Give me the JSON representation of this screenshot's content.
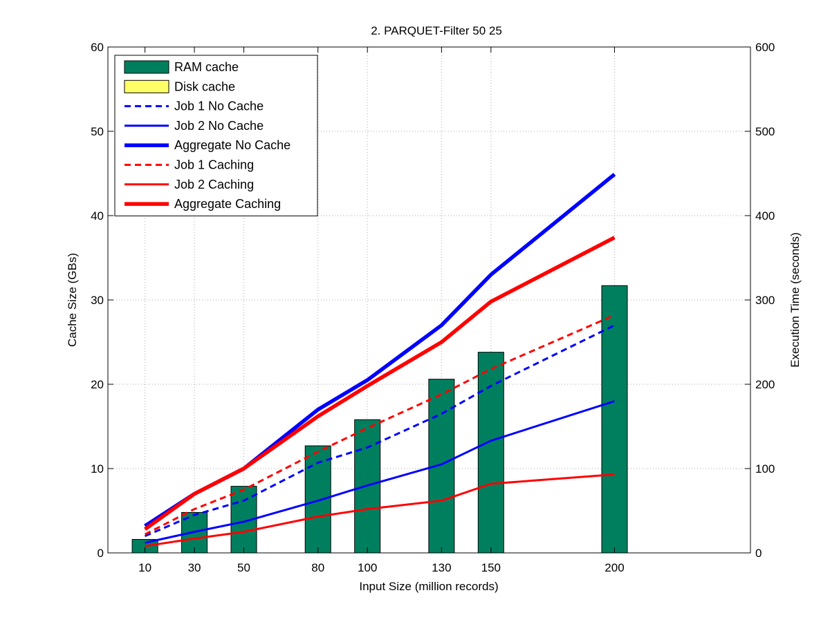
{
  "chart_data": {
    "type": "bar+line",
    "title": "2. PARQUET-Filter 50 25",
    "xlabel": "Input Size (million records)",
    "ylabel_left": "Cache Size (GBs)",
    "ylabel_right": "Execution Time (seconds)",
    "x": [
      10,
      30,
      50,
      80,
      100,
      130,
      150,
      200
    ],
    "x_tick_labels": [
      "10",
      "30",
      "50",
      "80",
      "100",
      "130",
      "150",
      "200"
    ],
    "xlim": [
      -5,
      255
    ],
    "ylim_left": [
      0,
      60
    ],
    "ylim_right": [
      0,
      600
    ],
    "y_ticks_left": [
      0,
      10,
      20,
      30,
      40,
      50,
      60
    ],
    "y_ticks_right": [
      0,
      100,
      200,
      300,
      400,
      500,
      600
    ],
    "grid": true,
    "legend_position": "top-left",
    "bars": [
      {
        "name": "RAM cache",
        "axis": "left",
        "color": "#007f5f",
        "values": [
          1.6,
          4.8,
          7.9,
          12.7,
          15.8,
          20.6,
          23.8,
          31.7
        ]
      },
      {
        "name": "Disk cache",
        "axis": "left",
        "color": "#ffff66",
        "values": [
          0,
          0,
          0,
          0,
          0,
          0,
          0,
          0
        ]
      }
    ],
    "series": [
      {
        "name": "Job 1 No Cache",
        "axis": "right",
        "color": "#0000ff",
        "style": "dashed",
        "width": 3,
        "values": [
          20,
          45,
          62,
          107,
          125,
          165,
          198,
          270
        ]
      },
      {
        "name": "Job 2 No Cache",
        "axis": "right",
        "color": "#0000ff",
        "style": "solid",
        "width": 3,
        "values": [
          12,
          25,
          37,
          62,
          80,
          105,
          133,
          180
        ]
      },
      {
        "name": "Aggregate No Cache",
        "axis": "right",
        "color": "#0000ff",
        "style": "solid",
        "width": 5.5,
        "values": [
          32,
          70,
          100,
          170,
          205,
          270,
          330,
          449
        ]
      },
      {
        "name": "Job 1 Caching",
        "axis": "right",
        "color": "#ff0000",
        "style": "dashed",
        "width": 3,
        "values": [
          22,
          52,
          75,
          120,
          148,
          188,
          218,
          282
        ]
      },
      {
        "name": "Job 2 Caching",
        "axis": "right",
        "color": "#ff0000",
        "style": "solid",
        "width": 3,
        "values": [
          8,
          17,
          25,
          43,
          52,
          62,
          82,
          93
        ]
      },
      {
        "name": "Aggregate Caching",
        "axis": "right",
        "color": "#ff0000",
        "style": "solid",
        "width": 5.5,
        "values": [
          28,
          70,
          100,
          162,
          198,
          250,
          298,
          374
        ]
      }
    ]
  }
}
